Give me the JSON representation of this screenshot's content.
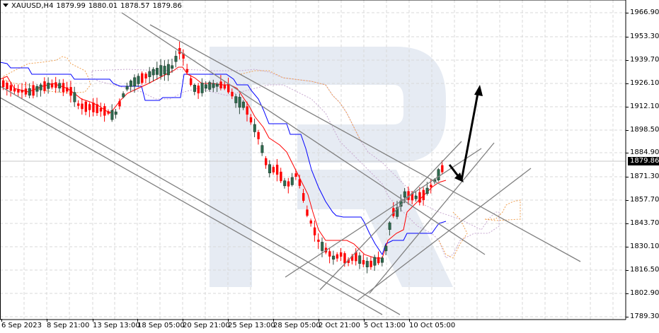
{
  "header": {
    "symbol": "XAUUSD,H4",
    "open": "1879.99",
    "high": "1880.01",
    "low": "1878.57",
    "close": "1879.86"
  },
  "price_axis": {
    "labels": [
      "1966.90",
      "1953.30",
      "1939.70",
      "1926.10",
      "1912.10",
      "1898.50",
      "1884.90",
      "1871.30",
      "1857.70",
      "1843.70",
      "1830.10",
      "1816.50",
      "1802.90",
      "1789.30"
    ],
    "current_price": "1879.86"
  },
  "time_axis": {
    "labels": [
      "6 Sep 2023",
      "8 Sep 21:00",
      "13 Sep 13:00",
      "18 Sep 05:00",
      "20 Sep 21:00",
      "25 Sep 13:00",
      "28 Sep 05:00",
      "2 Oct 21:00",
      "5 Oct 13:00",
      "10 Oct 05:00"
    ]
  },
  "colors": {
    "bull_candle": "#2e6b4f",
    "bear_candle": "#ff0000",
    "tenkan": "#ff0000",
    "kijun": "#0000ff",
    "senkou_a_cloud": "#f0a050",
    "senkou_b_cloud": "#c8a8d0",
    "trendlines": "#808080",
    "forecast_arrows": "#000000",
    "watermark": "#e6ebf3",
    "grid": "#d8d8d8"
  },
  "chart_data": {
    "type": "candlestick",
    "title": "XAUUSD,H4",
    "subtitle": "O 1879.99 H 1880.01 L 1878.57 C 1879.86",
    "xlabel": "",
    "ylabel": "",
    "ylim": [
      1789.3,
      1973.0
    ],
    "grid": true,
    "indicators": [
      "Ichimoku Kinko Hyo (Tenkan-sen red, Kijun-sen blue, cloud dotted orange/violet)"
    ],
    "x_ticks": [
      "6 Sep 2023",
      "8 Sep 21:00",
      "13 Sep 13:00",
      "18 Sep 05:00",
      "20 Sep 21:00",
      "25 Sep 13:00",
      "28 Sep 05:00",
      "2 Oct 21:00",
      "5 Oct 13:00",
      "10 Oct 05:00"
    ],
    "y_ticks": [
      1966.9,
      1953.3,
      1939.7,
      1926.1,
      1912.1,
      1898.5,
      1884.9,
      1871.3,
      1857.7,
      1843.7,
      1830.1,
      1816.5,
      1802.9,
      1789.3
    ],
    "approx_close_path": [
      {
        "x": "6 Sep 2023",
        "price": 1922
      },
      {
        "x": "8 Sep 21:00",
        "price": 1919
      },
      {
        "x": "13 Sep 13:00",
        "price": 1908
      },
      {
        "x": "18 Sep 05:00",
        "price": 1925
      },
      {
        "x": "20 Sep 21:00",
        "price": 1930
      },
      {
        "x": "25 Sep 13:00",
        "price": 1917
      },
      {
        "x": "28 Sep 05:00",
        "price": 1864
      },
      {
        "x": "2 Oct 21:00",
        "price": 1825
      },
      {
        "x": "5 Oct 13:00",
        "price": 1820
      },
      {
        "x": "10 Oct 05:00",
        "price": 1861
      },
      {
        "x": "last",
        "price": 1879.86
      }
    ],
    "session_high": 1947.5,
    "session_low": 1813.0,
    "last_price": 1879.86,
    "annotations": [
      "Descending channel trendlines (gray)",
      "Ascending channel trendlines from ~1813 low (gray)",
      "Forecast arrow: pullback to ~1868 then rise toward ~1926"
    ]
  }
}
